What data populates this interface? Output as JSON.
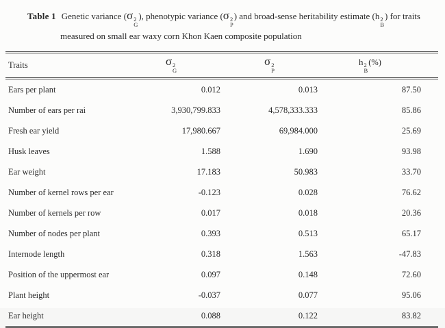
{
  "caption": {
    "label": "Table 1",
    "part1": "Genetic variance (",
    "part2": "), phenotypic variance (",
    "part3": ") and broad-sense heritability estimate (",
    "part4": ") for traits",
    "line2": "measured on small ear waxy corn Khon Kaen composite population"
  },
  "math": {
    "sigma": "σ",
    "h": "h",
    "exponent": "2",
    "genetic_sub": "G",
    "phenotypic_sub": "P",
    "heritability_sub": "B",
    "percent": "(%)"
  },
  "table": {
    "header": {
      "traits": "Traits"
    },
    "rows": [
      {
        "trait": "Ears per plant",
        "sg": "0.012",
        "sp": "0.013",
        "h": "87.50"
      },
      {
        "trait": "Number of ears per rai",
        "sg": "3,930,799.833",
        "sp": "4,578,333.333",
        "h": "85.86"
      },
      {
        "trait": "Fresh ear yield",
        "sg": "17,980.667",
        "sp": "69,984.000",
        "h": "25.69"
      },
      {
        "trait": "Husk leaves",
        "sg": "1.588",
        "sp": "1.690",
        "h": "93.98"
      },
      {
        "trait": "Ear weight",
        "sg": "17.183",
        "sp": "50.983",
        "h": "33.70"
      },
      {
        "trait": "Number of kernel rows per ear",
        "sg": "-0.123",
        "sp": "0.028",
        "h": "76.62"
      },
      {
        "trait": "Number of kernels per row",
        "sg": "0.017",
        "sp": "0.018",
        "h": "20.36"
      },
      {
        "trait": "Number of nodes per plant",
        "sg": "0.393",
        "sp": "0.513",
        "h": "65.17"
      },
      {
        "trait": "Internode length",
        "sg": "0.318",
        "sp": "1.563",
        "h": "-47.83"
      },
      {
        "trait": "Position of the uppermost ear",
        "sg": "0.097",
        "sp": "0.148",
        "h": "72.60"
      },
      {
        "trait": "Plant height",
        "sg": "-0.037",
        "sp": "0.077",
        "h": "95.06"
      },
      {
        "trait": "Ear height",
        "sg": "0.088",
        "sp": "0.122",
        "h": "83.82"
      }
    ]
  },
  "colors": {
    "text": "#2b2b2b",
    "rule": "#454545",
    "background": "#fcfcfb"
  }
}
